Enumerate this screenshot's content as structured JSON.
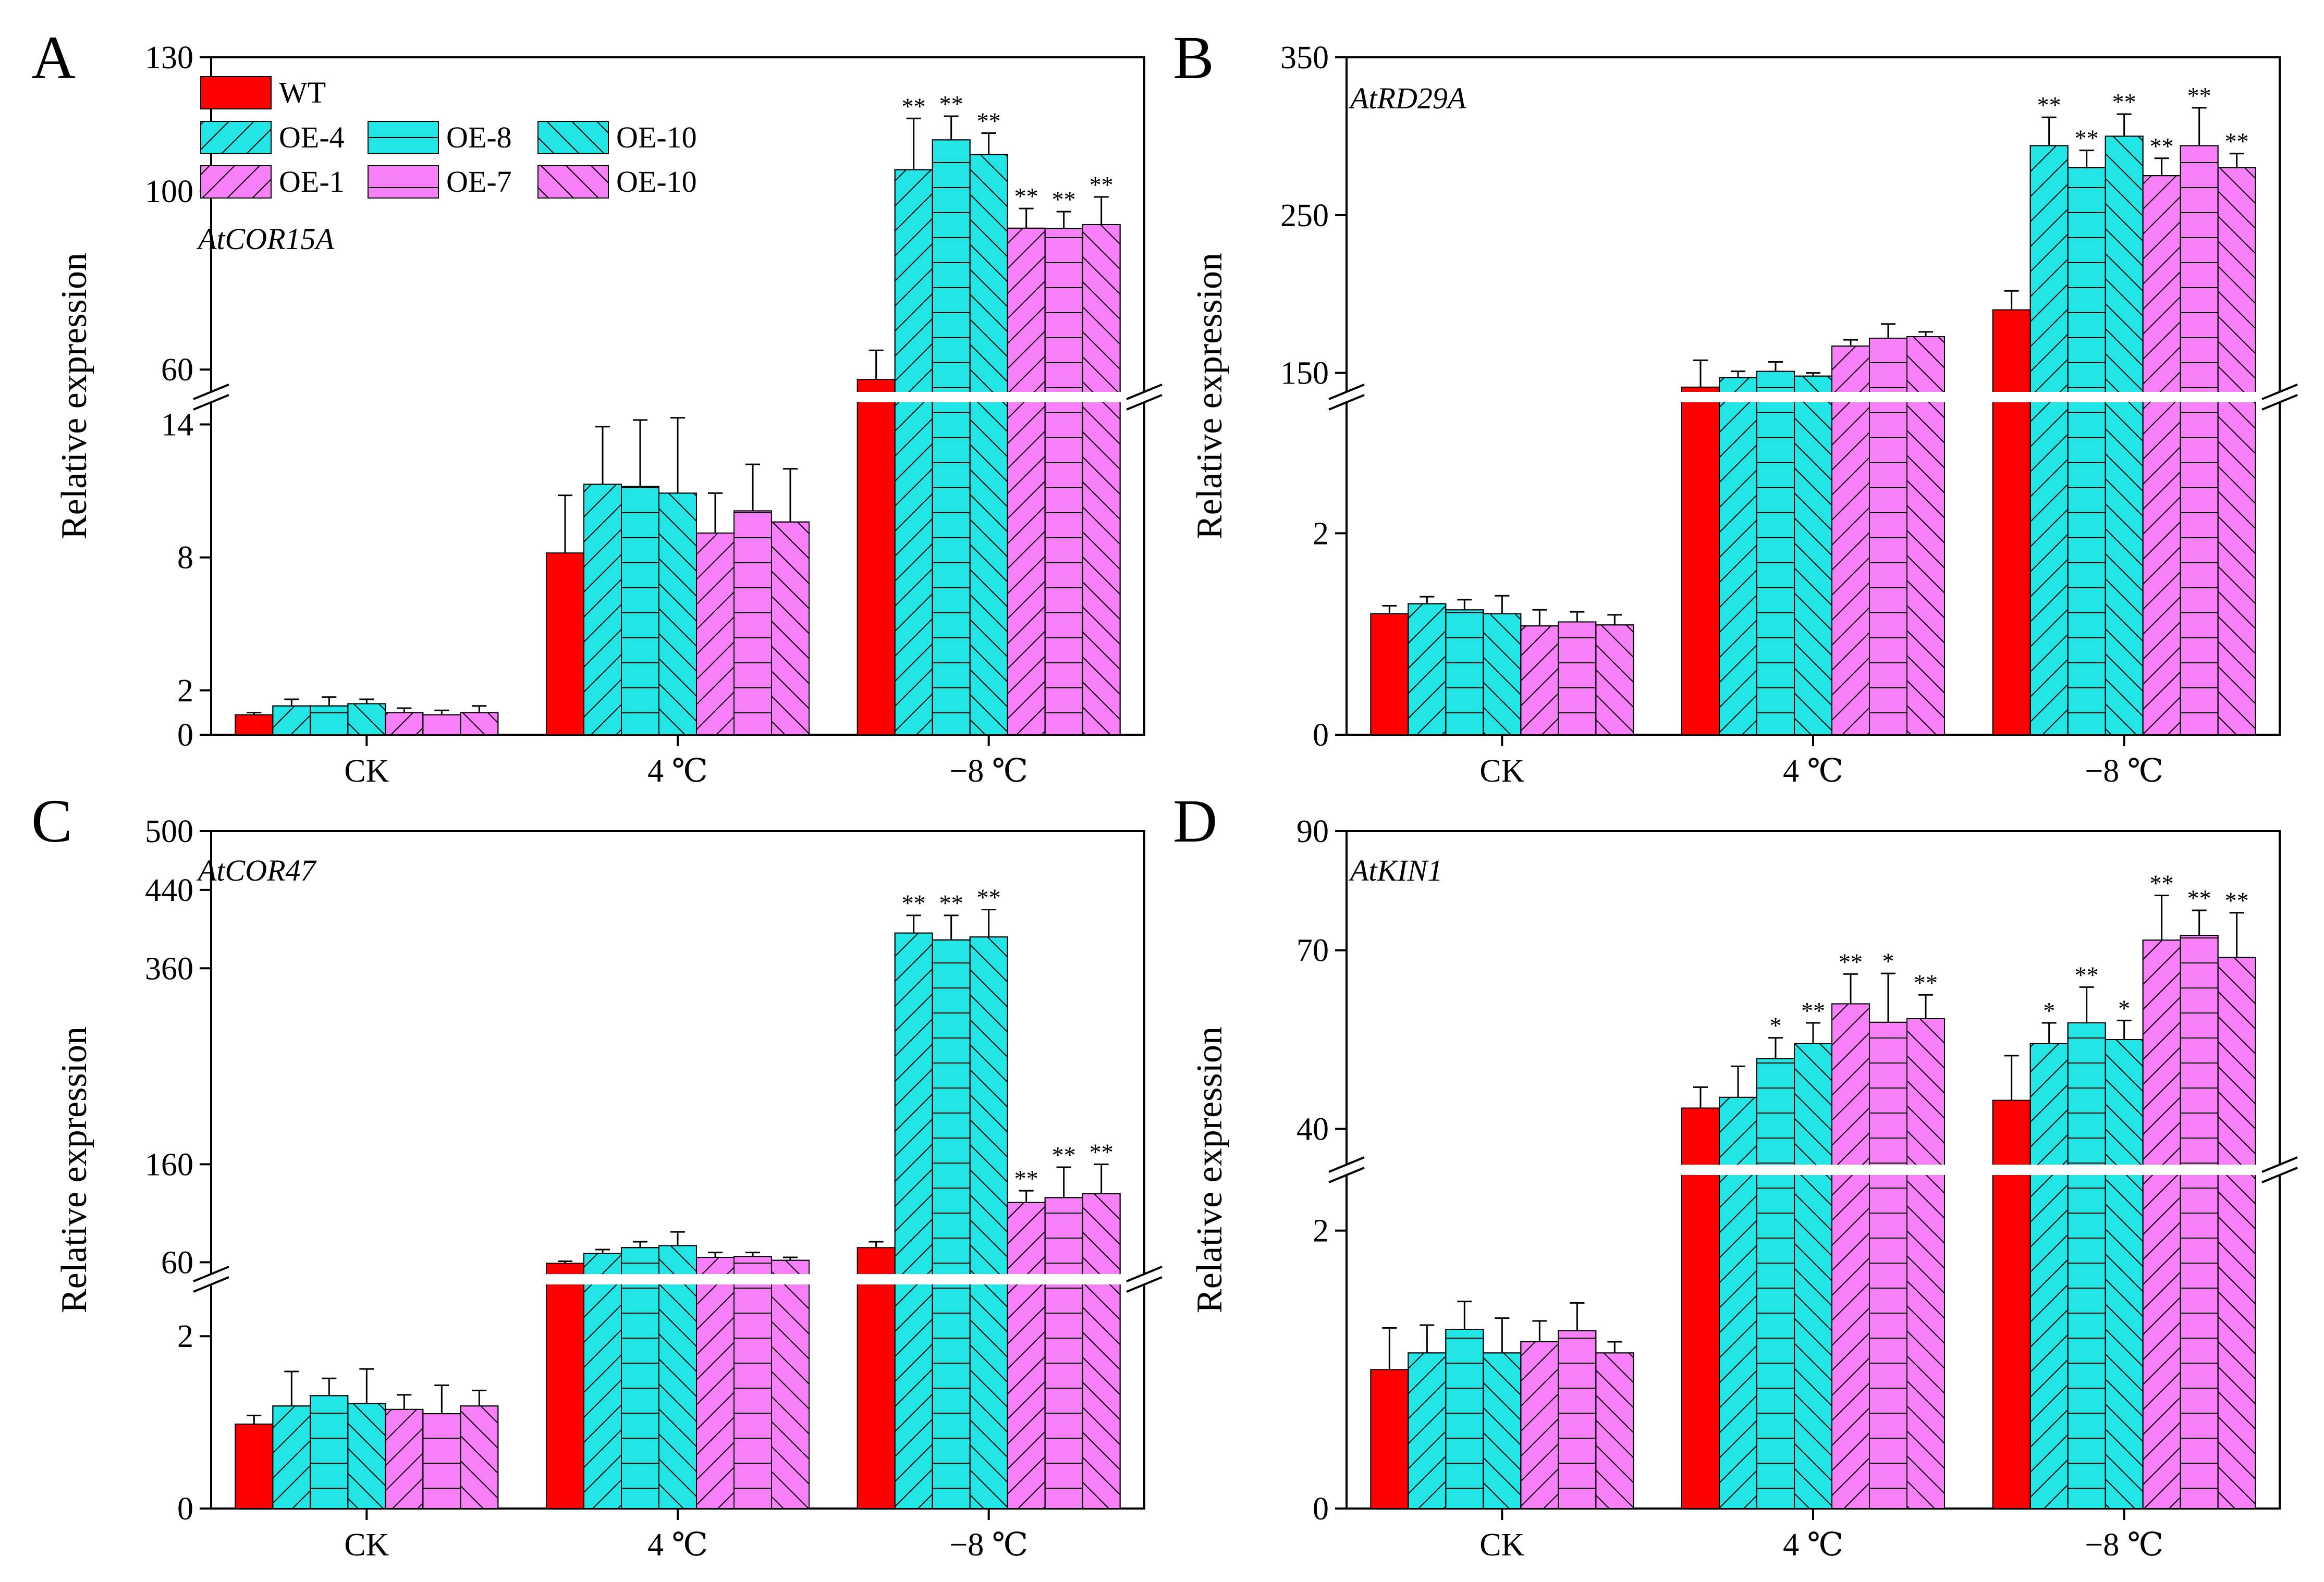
{
  "figure": {
    "series": [
      {
        "name": "WT",
        "color": "#ff0000",
        "pattern": "solid"
      },
      {
        "name": "OE-4",
        "color": "#22e6e6",
        "pattern": "fwd"
      },
      {
        "name": "OE-8",
        "color": "#22e6e6",
        "pattern": "horiz"
      },
      {
        "name": "OE-10",
        "color": "#22e6e6",
        "pattern": "back"
      },
      {
        "name": "OE-1",
        "color": "#f77ff7",
        "pattern": "fwd"
      },
      {
        "name": "OE-7",
        "color": "#f77ff7",
        "pattern": "horiz"
      },
      {
        "name": "OE-10",
        "color": "#f77ff7",
        "pattern": "back"
      }
    ]
  },
  "chart_data": [
    {
      "type": "bar",
      "panel": "A",
      "gene": "AtCOR15A",
      "ylabel": "Relative expression",
      "categories": [
        "CK",
        "4 ℃",
        "−8 ℃"
      ],
      "ylim_lower": [
        0,
        15
      ],
      "ylim_upper": [
        55,
        130
      ],
      "yticks_lower": [
        0,
        2,
        8,
        14
      ],
      "yticks_upper": [
        60,
        100,
        130
      ],
      "values": [
        [
          0.9,
          8.2,
          57.8
        ],
        [
          1.3,
          11.3,
          104.8
        ],
        [
          1.3,
          11.2,
          111.5
        ],
        [
          1.4,
          10.9,
          108.2
        ],
        [
          1.0,
          9.1,
          91.7
        ],
        [
          0.9,
          10.1,
          91.6
        ],
        [
          1.0,
          9.6,
          92.5
        ]
      ],
      "errors": [
        [
          0.1,
          2.6,
          6.5
        ],
        [
          0.3,
          2.6,
          11.5
        ],
        [
          0.4,
          3.0,
          5.3
        ],
        [
          0.2,
          3.4,
          4.8
        ],
        [
          0.2,
          1.8,
          4.4
        ],
        [
          0.2,
          2.1,
          3.8
        ],
        [
          0.3,
          2.4,
          6.2
        ]
      ],
      "significance": [
        [
          "",
          "",
          ""
        ],
        [
          "",
          "",
          "**"
        ],
        [
          "",
          "",
          "**"
        ],
        [
          "",
          "",
          "**"
        ],
        [
          "",
          "",
          "**"
        ],
        [
          "",
          "",
          "**"
        ],
        [
          "",
          "",
          "**"
        ]
      ]
    },
    {
      "type": "bar",
      "panel": "B",
      "gene": "AtRD29A",
      "ylabel": "Relative expression",
      "categories": [
        "CK",
        "4 ℃",
        "−8 ℃"
      ],
      "ylim_lower": [
        0,
        3.3
      ],
      "ylim_upper": [
        138,
        350
      ],
      "yticks_lower": [
        0,
        2
      ],
      "yticks_upper": [
        150,
        250,
        350
      ],
      "values": [
        [
          1.2,
          141,
          190
        ],
        [
          1.3,
          147,
          294
        ],
        [
          1.24,
          151,
          280
        ],
        [
          1.2,
          148,
          300
        ],
        [
          1.08,
          167,
          275
        ],
        [
          1.12,
          172,
          294
        ],
        [
          1.09,
          173,
          280
        ]
      ],
      "errors": [
        [
          0.08,
          17,
          12
        ],
        [
          0.07,
          4,
          18
        ],
        [
          0.1,
          6,
          11
        ],
        [
          0.18,
          2,
          14
        ],
        [
          0.16,
          4,
          11
        ],
        [
          0.1,
          9,
          24
        ],
        [
          0.1,
          3,
          9
        ]
      ],
      "significance": [
        [
          "",
          "",
          ""
        ],
        [
          "",
          "",
          "**"
        ],
        [
          "",
          "",
          "**"
        ],
        [
          "",
          "",
          "**"
        ],
        [
          "",
          "",
          "**"
        ],
        [
          "",
          "",
          "**"
        ],
        [
          "",
          "",
          "**"
        ]
      ]
    },
    {
      "type": "bar",
      "panel": "C",
      "gene": "AtCOR47",
      "ylabel": "Relative expression",
      "categories": [
        "CK",
        "4 ℃",
        "−8 ℃"
      ],
      "ylim_lower": [
        0,
        2.6
      ],
      "ylim_upper": [
        48,
        500
      ],
      "yticks_lower": [
        0,
        2
      ],
      "yticks_upper": [
        60,
        160,
        360,
        440,
        500
      ],
      "values": [
        [
          0.98,
          59,
          75
        ],
        [
          1.19,
          69,
          396
        ],
        [
          1.31,
          75,
          389
        ],
        [
          1.22,
          77,
          392
        ],
        [
          1.15,
          65,
          121
        ],
        [
          1.1,
          66,
          126
        ],
        [
          1.19,
          62,
          130
        ]
      ],
      "errors": [
        [
          0.1,
          2,
          6
        ],
        [
          0.4,
          4,
          18
        ],
        [
          0.2,
          6,
          25
        ],
        [
          0.4,
          14,
          28
        ],
        [
          0.17,
          5,
          12
        ],
        [
          0.33,
          4,
          31
        ],
        [
          0.18,
          3,
          30
        ]
      ],
      "significance": [
        [
          "",
          "",
          ""
        ],
        [
          "",
          "",
          "**"
        ],
        [
          "",
          "",
          "**"
        ],
        [
          "",
          "",
          "**"
        ],
        [
          "",
          "",
          "**"
        ],
        [
          "",
          "",
          "**"
        ],
        [
          "",
          "",
          "**"
        ]
      ]
    },
    {
      "type": "bar",
      "panel": "D",
      "gene": "AtKIN1",
      "ylabel": "Relative expression",
      "categories": [
        "CK",
        "4 ℃",
        "−8 ℃"
      ],
      "ylim_lower": [
        0,
        2.4
      ],
      "ylim_upper": [
        34,
        90
      ],
      "yticks_lower": [
        0,
        2
      ],
      "yticks_upper": [
        40,
        70,
        90
      ],
      "values": [
        [
          1.0,
          43.5,
          44.8
        ],
        [
          1.12,
          45.3,
          54.3
        ],
        [
          1.29,
          51.8,
          57.8
        ],
        [
          1.12,
          54.3,
          55.0
        ],
        [
          1.2,
          61.0,
          71.7
        ],
        [
          1.28,
          57.9,
          72.5
        ],
        [
          1.12,
          58.5,
          68.8
        ]
      ],
      "errors": [
        [
          0.3,
          3.5,
          7.5
        ],
        [
          0.2,
          5.2,
          3.5
        ],
        [
          0.2,
          3.5,
          6.0
        ],
        [
          0.25,
          3.5,
          3.2
        ],
        [
          0.15,
          5.0,
          7.5
        ],
        [
          0.2,
          8.2,
          4.2
        ],
        [
          0.08,
          4.0,
          7.5
        ]
      ],
      "significance": [
        [
          "",
          "",
          ""
        ],
        [
          "",
          "",
          "*"
        ],
        [
          "",
          "*",
          "**"
        ],
        [
          "",
          "**",
          "*"
        ],
        [
          "",
          "**",
          "**"
        ],
        [
          "",
          "*",
          "**"
        ],
        [
          "",
          "**",
          "**"
        ]
      ]
    }
  ]
}
